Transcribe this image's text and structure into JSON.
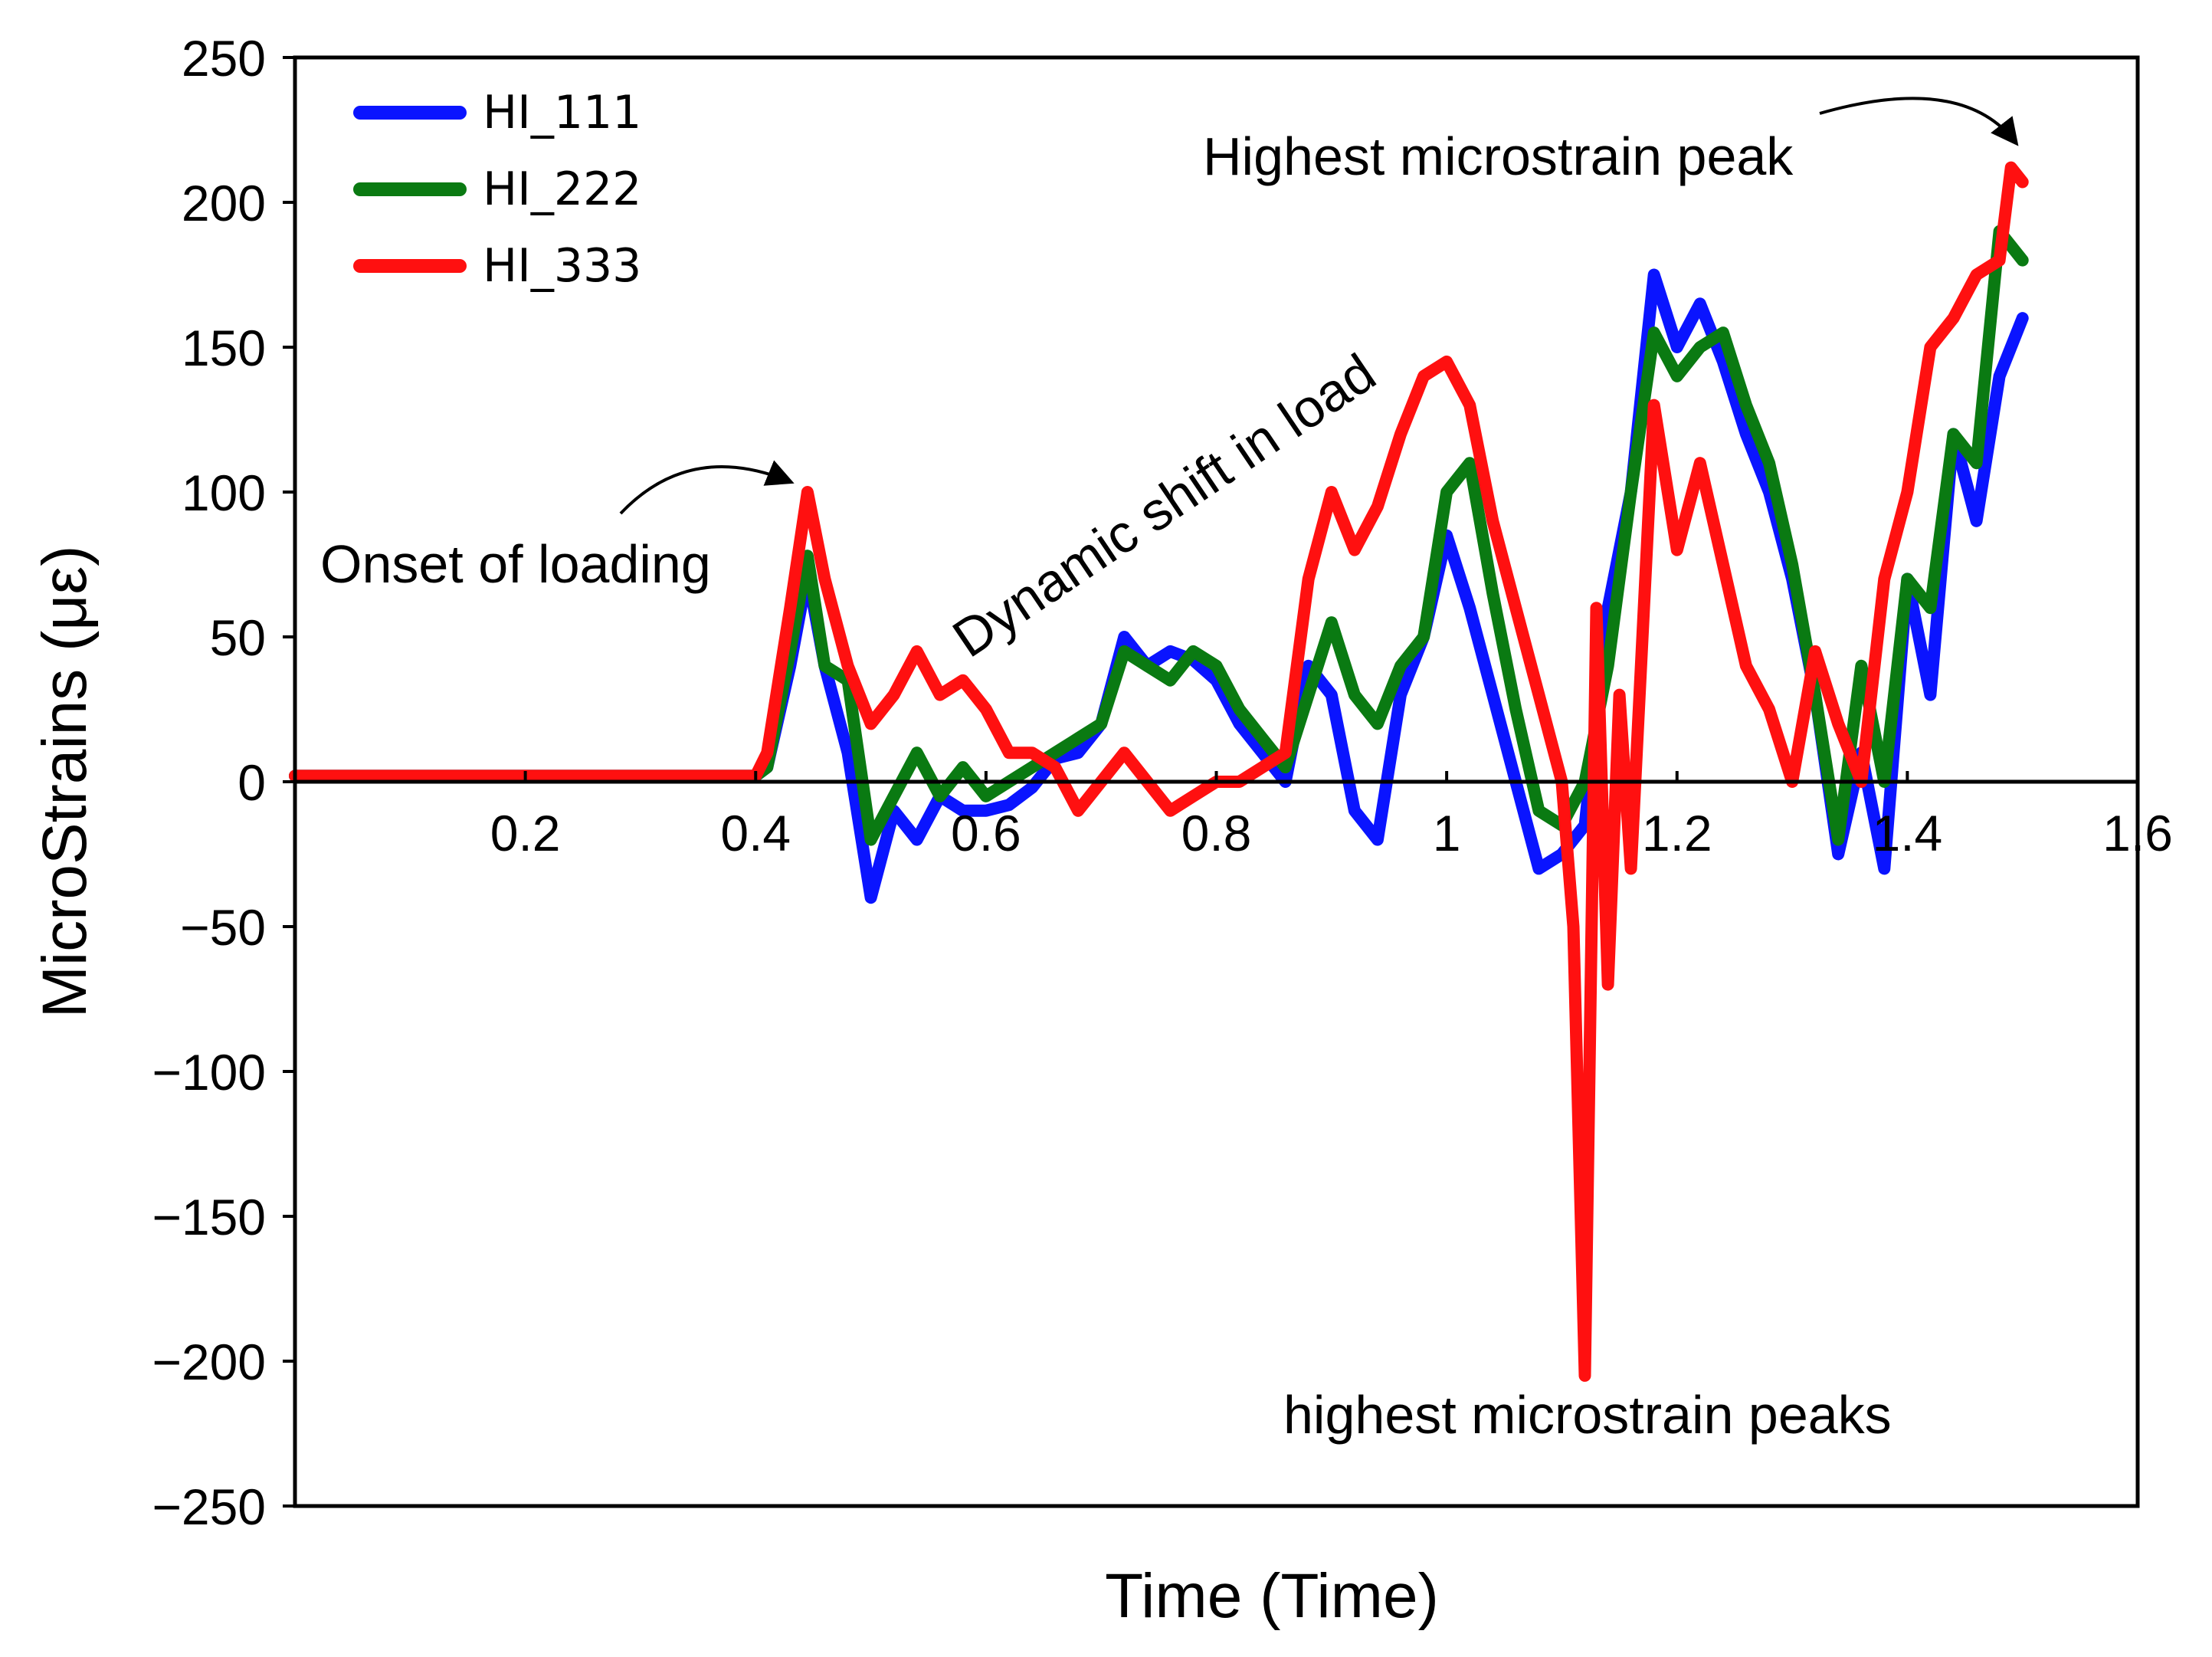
{
  "chart_data": {
    "type": "line",
    "title": "",
    "xlabel": "Time (Time)",
    "ylabel": "MicroStrains (με)",
    "xlim": [
      0,
      1.6
    ],
    "ylim": [
      -250,
      250
    ],
    "xticks": [
      0.2,
      0.4,
      0.6,
      0.8,
      1,
      1.2,
      1.4,
      1.6
    ],
    "xtick_labels": [
      "0.2",
      "0.4",
      "0.6",
      "0.8",
      "1",
      "1.2",
      "1.4",
      "1.6"
    ],
    "yticks": [
      250,
      200,
      150,
      100,
      50,
      0,
      -50,
      -100,
      -150,
      -200,
      -250
    ],
    "ytick_labels": [
      "250",
      "200",
      "150",
      "100",
      "50",
      "0",
      "−50",
      "−100",
      "−150",
      "−200",
      "−250"
    ],
    "legend_position": "top-left",
    "series": [
      {
        "name": "HI_111",
        "color": "#0a14ff",
        "x": [
          0,
          0.1,
          0.2,
          0.3,
          0.4,
          0.41,
          0.43,
          0.445,
          0.46,
          0.48,
          0.5,
          0.52,
          0.54,
          0.56,
          0.58,
          0.6,
          0.62,
          0.64,
          0.66,
          0.68,
          0.7,
          0.72,
          0.74,
          0.76,
          0.78,
          0.8,
          0.82,
          0.84,
          0.86,
          0.88,
          0.9,
          0.92,
          0.94,
          0.96,
          0.98,
          1.0,
          1.02,
          1.04,
          1.06,
          1.08,
          1.1,
          1.12,
          1.14,
          1.16,
          1.18,
          1.2,
          1.22,
          1.24,
          1.26,
          1.28,
          1.3,
          1.32,
          1.34,
          1.36,
          1.38,
          1.4,
          1.42,
          1.44,
          1.46,
          1.48,
          1.5
        ],
        "values": [
          2,
          2,
          2,
          2,
          2,
          5,
          40,
          72,
          40,
          10,
          -40,
          -10,
          -20,
          -5,
          -10,
          -10,
          -8,
          -2,
          8,
          10,
          20,
          50,
          40,
          45,
          42,
          35,
          20,
          10,
          0,
          40,
          30,
          -10,
          -20,
          30,
          50,
          85,
          60,
          30,
          0,
          -30,
          -25,
          -15,
          60,
          100,
          175,
          150,
          165,
          145,
          120,
          100,
          70,
          30,
          -25,
          10,
          -30,
          70,
          30,
          120,
          90,
          140,
          160
        ]
      },
      {
        "name": "HI_222",
        "color": "#0a7a12",
        "x": [
          0,
          0.1,
          0.2,
          0.3,
          0.4,
          0.41,
          0.43,
          0.445,
          0.46,
          0.48,
          0.5,
          0.52,
          0.54,
          0.56,
          0.58,
          0.6,
          0.62,
          0.64,
          0.66,
          0.68,
          0.7,
          0.72,
          0.74,
          0.76,
          0.78,
          0.8,
          0.82,
          0.84,
          0.86,
          0.88,
          0.9,
          0.92,
          0.94,
          0.96,
          0.98,
          1.0,
          1.02,
          1.04,
          1.06,
          1.08,
          1.1,
          1.12,
          1.14,
          1.16,
          1.18,
          1.2,
          1.22,
          1.24,
          1.26,
          1.28,
          1.3,
          1.32,
          1.34,
          1.36,
          1.38,
          1.4,
          1.42,
          1.44,
          1.46,
          1.48,
          1.5
        ],
        "values": [
          2,
          2,
          2,
          2,
          2,
          5,
          45,
          78,
          40,
          35,
          -20,
          -5,
          10,
          -5,
          5,
          -5,
          0,
          5,
          10,
          15,
          20,
          45,
          40,
          35,
          45,
          40,
          25,
          15,
          5,
          30,
          55,
          30,
          20,
          40,
          50,
          100,
          110,
          65,
          25,
          -10,
          -15,
          0,
          40,
          100,
          155,
          140,
          150,
          155,
          130,
          110,
          75,
          30,
          -20,
          40,
          0,
          70,
          60,
          120,
          110,
          190,
          180
        ]
      },
      {
        "name": "HI_333",
        "color": "#ff1010",
        "x": [
          0,
          0.1,
          0.2,
          0.3,
          0.4,
          0.41,
          0.43,
          0.445,
          0.46,
          0.48,
          0.5,
          0.52,
          0.54,
          0.56,
          0.58,
          0.6,
          0.62,
          0.64,
          0.66,
          0.68,
          0.7,
          0.72,
          0.74,
          0.76,
          0.78,
          0.8,
          0.82,
          0.84,
          0.86,
          0.88,
          0.9,
          0.92,
          0.94,
          0.96,
          0.98,
          1.0,
          1.02,
          1.04,
          1.06,
          1.08,
          1.1,
          1.11,
          1.12,
          1.13,
          1.14,
          1.15,
          1.16,
          1.18,
          1.2,
          1.22,
          1.24,
          1.26,
          1.28,
          1.3,
          1.32,
          1.34,
          1.36,
          1.38,
          1.4,
          1.42,
          1.44,
          1.46,
          1.48,
          1.49,
          1.5
        ],
        "values": [
          2,
          2,
          2,
          2,
          2,
          10,
          60,
          100,
          70,
          40,
          20,
          30,
          45,
          30,
          35,
          25,
          10,
          10,
          5,
          -10,
          0,
          10,
          0,
          -10,
          -5,
          0,
          0,
          5,
          10,
          70,
          100,
          80,
          95,
          120,
          140,
          145,
          130,
          90,
          60,
          30,
          0,
          -50,
          -205,
          60,
          -70,
          30,
          -30,
          130,
          80,
          110,
          75,
          40,
          25,
          0,
          45,
          20,
          0,
          70,
          100,
          150,
          160,
          175,
          180,
          212,
          207
        ]
      }
    ],
    "annotations": [
      {
        "text": "Onset of loading",
        "arrow": true
      },
      {
        "text": "Dynamic shift in load",
        "arrow": false
      },
      {
        "text": "Highest microstrain peak",
        "arrow": true
      },
      {
        "text": "highest microstrain peaks",
        "arrow": false
      }
    ]
  }
}
